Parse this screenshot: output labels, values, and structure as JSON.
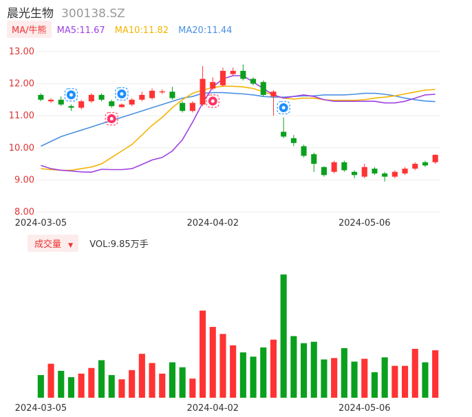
{
  "header": {
    "name": "晨光生物",
    "code": "300138.SZ"
  },
  "ma_legend": {
    "type_label": "MA/牛熊",
    "items": [
      {
        "label": "MA5:11.67",
        "color": "#a040e0"
      },
      {
        "label": "MA10:11.82",
        "color": "#f5b400"
      },
      {
        "label": "MA20:11.44",
        "color": "#4a90e2"
      }
    ]
  },
  "volume_legend": {
    "label": "成交量",
    "value_text": "VOL:9.85万手"
  },
  "colors": {
    "up": "#ff3333",
    "down": "#0aa01e",
    "grid": "#eeeeee"
  },
  "chart_data": {
    "type": "candlestick",
    "price_axis": {
      "ylim": [
        8.0,
        13.0
      ],
      "ticks": [
        "13.00",
        "12.00",
        "11.00",
        "10.00",
        "9.00",
        "8.00"
      ]
    },
    "date_ticks": [
      {
        "label": "2024-03-05",
        "index": 0
      },
      {
        "label": "2024-04-02",
        "index": 17
      },
      {
        "label": "2024-05-06",
        "index": 32
      }
    ],
    "candles": [
      {
        "o": 11.65,
        "c": 11.5,
        "h": 11.7,
        "l": 11.45
      },
      {
        "o": 11.45,
        "c": 11.5,
        "h": 11.55,
        "l": 11.4
      },
      {
        "o": 11.5,
        "c": 11.35,
        "h": 11.6,
        "l": 11.3
      },
      {
        "o": 11.3,
        "c": 11.25,
        "h": 11.35,
        "l": 11.15
      },
      {
        "o": 11.25,
        "c": 11.45,
        "h": 11.5,
        "l": 11.2
      },
      {
        "o": 11.45,
        "c": 11.65,
        "h": 11.7,
        "l": 11.4
      },
      {
        "o": 11.65,
        "c": 11.5,
        "h": 11.7,
        "l": 11.45
      },
      {
        "o": 11.45,
        "c": 11.3,
        "h": 11.5,
        "l": 11.25
      },
      {
        "o": 11.27,
        "c": 11.35,
        "h": 11.38,
        "l": 11.25
      },
      {
        "o": 11.35,
        "c": 11.5,
        "h": 11.55,
        "l": 11.3
      },
      {
        "o": 11.5,
        "c": 11.65,
        "h": 11.75,
        "l": 11.45
      },
      {
        "o": 11.55,
        "c": 11.78,
        "h": 11.85,
        "l": 11.5
      },
      {
        "o": 11.75,
        "c": 11.76,
        "h": 11.82,
        "l": 11.68
      },
      {
        "o": 11.75,
        "c": 11.55,
        "h": 11.9,
        "l": 11.5
      },
      {
        "o": 11.4,
        "c": 11.15,
        "h": 11.45,
        "l": 11.1
      },
      {
        "o": 11.15,
        "c": 11.4,
        "h": 11.45,
        "l": 11.1
      },
      {
        "o": 11.35,
        "c": 12.15,
        "h": 12.55,
        "l": 11.3
      },
      {
        "o": 11.85,
        "c": 12.05,
        "h": 12.2,
        "l": 11.8
      },
      {
        "o": 11.95,
        "c": 12.4,
        "h": 12.5,
        "l": 11.9
      },
      {
        "o": 12.3,
        "c": 12.4,
        "h": 12.5,
        "l": 12.25
      },
      {
        "o": 12.4,
        "c": 12.15,
        "h": 12.6,
        "l": 12.1
      },
      {
        "o": 12.15,
        "c": 12.0,
        "h": 12.2,
        "l": 11.95
      },
      {
        "o": 12.05,
        "c": 11.65,
        "h": 12.1,
        "l": 11.6
      },
      {
        "o": 11.6,
        "c": 11.75,
        "h": 11.8,
        "l": 11.0
      },
      {
        "o": 10.5,
        "c": 10.35,
        "h": 10.95,
        "l": 10.3
      },
      {
        "o": 10.3,
        "c": 10.15,
        "h": 10.4,
        "l": 10.05
      },
      {
        "o": 10.05,
        "c": 9.75,
        "h": 10.1,
        "l": 9.7
      },
      {
        "o": 9.8,
        "c": 9.5,
        "h": 9.85,
        "l": 9.25
      },
      {
        "o": 9.4,
        "c": 9.15,
        "h": 9.42,
        "l": 9.1
      },
      {
        "o": 9.25,
        "c": 9.55,
        "h": 9.6,
        "l": 9.2
      },
      {
        "o": 9.55,
        "c": 9.3,
        "h": 9.6,
        "l": 9.25
      },
      {
        "o": 9.25,
        "c": 9.15,
        "h": 9.3,
        "l": 9.05
      },
      {
        "o": 9.1,
        "c": 9.4,
        "h": 9.5,
        "l": 9.05
      },
      {
        "o": 9.35,
        "c": 9.2,
        "h": 9.4,
        "l": 9.15
      },
      {
        "o": 9.2,
        "c": 9.1,
        "h": 9.25,
        "l": 8.95
      },
      {
        "o": 9.1,
        "c": 9.25,
        "h": 9.3,
        "l": 9.05
      },
      {
        "o": 9.2,
        "c": 9.35,
        "h": 9.4,
        "l": 9.15
      },
      {
        "o": 9.35,
        "c": 9.5,
        "h": 9.55,
        "l": 9.3
      },
      {
        "o": 9.55,
        "c": 9.45,
        "h": 9.6,
        "l": 9.4
      },
      {
        "o": 9.55,
        "c": 9.78,
        "h": 9.8,
        "l": 9.5
      }
    ],
    "ma5": [
      9.45,
      9.35,
      9.3,
      9.28,
      9.25,
      9.24,
      9.33,
      9.32,
      9.32,
      9.35,
      9.48,
      9.62,
      9.7,
      9.9,
      10.25,
      10.8,
      11.4,
      11.9,
      12.15,
      12.25,
      12.25,
      12.05,
      11.85,
      11.65,
      11.55,
      11.6,
      11.65,
      11.6,
      11.5,
      11.45,
      11.45,
      11.45,
      11.45,
      11.45,
      11.4,
      11.4,
      11.45,
      11.55,
      11.65,
      11.67
    ],
    "ma10": [
      9.35,
      9.32,
      9.3,
      9.3,
      9.35,
      9.4,
      9.5,
      9.7,
      9.9,
      10.1,
      10.4,
      10.7,
      10.95,
      11.25,
      11.5,
      11.7,
      11.8,
      11.88,
      11.92,
      11.92,
      11.9,
      11.85,
      11.75,
      11.65,
      11.55,
      11.52,
      11.55,
      11.55,
      11.5,
      11.48,
      11.48,
      11.48,
      11.5,
      11.55,
      11.58,
      11.62,
      11.68,
      11.74,
      11.8,
      11.82
    ],
    "ma20": [
      10.05,
      10.2,
      10.35,
      10.45,
      10.55,
      10.65,
      10.75,
      10.85,
      10.95,
      11.05,
      11.15,
      11.25,
      11.35,
      11.45,
      11.55,
      11.6,
      11.7,
      11.72,
      11.72,
      11.7,
      11.68,
      11.65,
      11.6,
      11.58,
      11.58,
      11.6,
      11.62,
      11.62,
      11.65,
      11.65,
      11.65,
      11.67,
      11.7,
      11.7,
      11.67,
      11.62,
      11.55,
      11.5,
      11.46,
      11.44
    ],
    "volumes": [
      0.32,
      0.48,
      0.38,
      0.29,
      0.34,
      0.42,
      0.53,
      0.32,
      0.26,
      0.39,
      0.62,
      0.49,
      0.34,
      0.5,
      0.43,
      0.27,
      1.23,
      1.0,
      0.9,
      0.74,
      0.64,
      0.58,
      0.71,
      0.82,
      1.74,
      0.87,
      0.77,
      0.79,
      0.54,
      0.56,
      0.7,
      0.51,
      0.55,
      0.36,
      0.57,
      0.45,
      0.45,
      0.69,
      0.5,
      0.67
    ],
    "markers": [
      {
        "index": 3,
        "kind": "bear",
        "position": "above"
      },
      {
        "index": 7,
        "kind": "bull",
        "position": "below"
      },
      {
        "index": 8,
        "kind": "bear",
        "position": "above"
      },
      {
        "index": 17,
        "kind": "bull",
        "position": "below"
      },
      {
        "index": 24,
        "kind": "bear",
        "position": "above"
      }
    ]
  }
}
